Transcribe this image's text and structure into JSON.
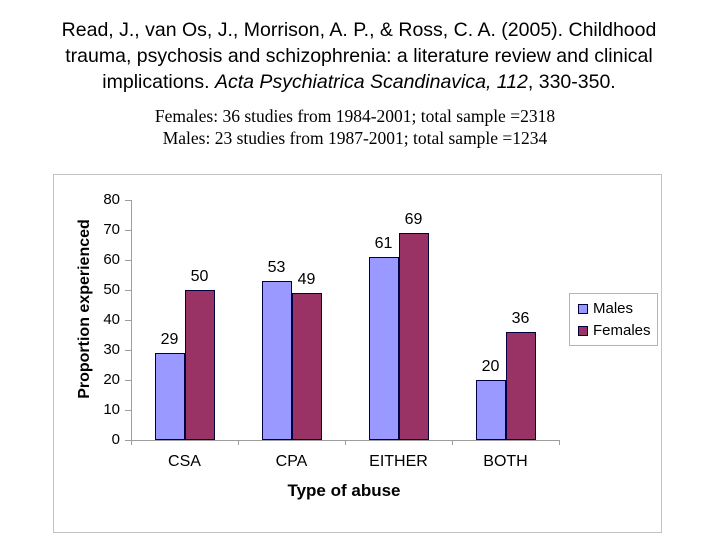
{
  "slide": {
    "citation": {
      "line1": "Read, J., van Os, J., Morrison, A. P., & Ross, C. A. (2005). Childhood",
      "line2": "trauma, psychosis and schizophrenia: a literature review and clinical",
      "line3_pre": "implications. ",
      "line3_italic": "Acta Psychiatrica Scandinavica, 112",
      "line3_post": ", 330-350."
    },
    "subtitle": {
      "line1": "Females: 36 studies from 1984-2001; total sample =2318",
      "line2": "Males: 23 studies from 1987-2001; total sample =1234"
    }
  },
  "chart_data": {
    "type": "bar",
    "title": "",
    "categories": [
      "CSA",
      "CPA",
      "EITHER",
      "BOTH"
    ],
    "series": [
      {
        "name": "Males",
        "color": "#9999ff",
        "values": [
          29,
          53,
          61,
          20
        ]
      },
      {
        "name": "Females",
        "color": "#993366",
        "values": [
          50,
          49,
          69,
          36
        ]
      }
    ],
    "xlabel": "Type of abuse",
    "ylabel": "Proportion experienced",
    "ylim": [
      0,
      80
    ],
    "ytick_step": 10,
    "grid": false,
    "legend_position": "right-middle",
    "bar_border_color": "#000040",
    "data_labels": true
  }
}
